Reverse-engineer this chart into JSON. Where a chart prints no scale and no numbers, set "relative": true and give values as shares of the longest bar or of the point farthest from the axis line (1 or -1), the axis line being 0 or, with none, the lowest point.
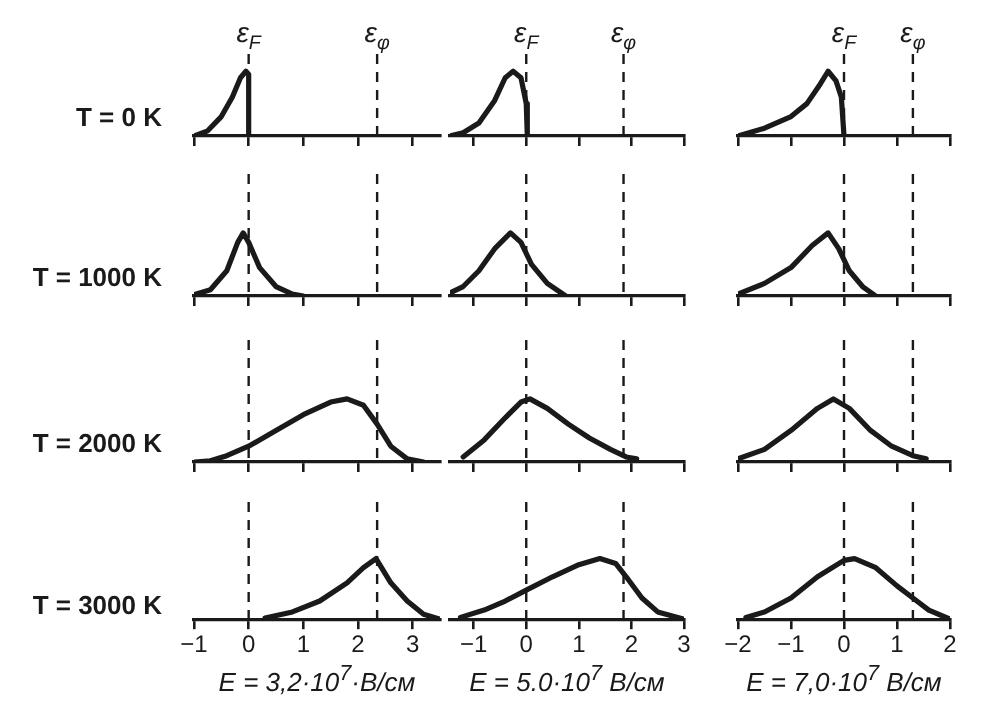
{
  "chart_data": [
    {
      "type": "line",
      "relative": true,
      "ylabel": "T = 0 K",
      "xlim": [
        -1,
        3.5
      ],
      "xticks": [
        -1,
        0,
        1,
        2,
        3
      ],
      "tick_labels": false,
      "ref_lines": [
        {
          "axis": "x",
          "value": 0,
          "label": "ε$_{F}$",
          "line_style": "dashed"
        },
        {
          "axis": "x",
          "value": 2.35,
          "label": "ε$_{φ}$",
          "line_style": "dashed"
        }
      ],
      "series": [
        {
          "color": "#1a1a1a",
          "x": [
            -1,
            -0.75,
            -0.5,
            -0.3,
            -0.15,
            -0.05,
            0,
            0
          ],
          "values": [
            0,
            0.08,
            0.3,
            0.6,
            0.9,
            1,
            0.95,
            0
          ]
        }
      ]
    },
    {
      "type": "line",
      "relative": true,
      "xlim": [
        -1.45,
        3
      ],
      "xticks": [
        -1,
        0,
        1,
        2,
        3
      ],
      "tick_labels": false,
      "ref_lines": [
        {
          "axis": "x",
          "value": 0,
          "label": "ε$_{F}$",
          "line_style": "dashed"
        },
        {
          "axis": "x",
          "value": 1.85,
          "label": "ε$_{φ}$",
          "line_style": "dashed"
        }
      ],
      "series": [
        {
          "color": "#1a1a1a",
          "x": [
            -1.45,
            -1.2,
            -0.9,
            -0.6,
            -0.4,
            -0.25,
            -0.1,
            0,
            0.02
          ],
          "values": [
            0,
            0.05,
            0.2,
            0.55,
            0.9,
            1,
            0.9,
            0.5,
            0
          ]
        }
      ]
    },
    {
      "type": "line",
      "relative": true,
      "xlim": [
        -2,
        2
      ],
      "xticks": [
        -2,
        -1,
        0,
        1,
        2
      ],
      "tick_labels": false,
      "ref_lines": [
        {
          "axis": "x",
          "value": 0,
          "label": "ε$_{F}$",
          "line_style": "dashed"
        },
        {
          "axis": "x",
          "value": 1.3,
          "label": "ε$_{φ}$",
          "line_style": "dashed"
        }
      ],
      "series": [
        {
          "color": "#1a1a1a",
          "x": [
            -2,
            -1.5,
            -1,
            -0.7,
            -0.45,
            -0.3,
            -0.15,
            -0.05,
            0
          ],
          "values": [
            0,
            0.12,
            0.3,
            0.5,
            0.8,
            1,
            0.85,
            0.6,
            0
          ]
        }
      ]
    },
    {
      "type": "line",
      "relative": true,
      "ylabel": "T = 1000 K",
      "xlim": [
        -1,
        3.5
      ],
      "xticks": [
        -1,
        0,
        1,
        2,
        3
      ],
      "tick_labels": false,
      "ref_lines": [
        {
          "axis": "x",
          "value": 0,
          "line_style": "dashed"
        },
        {
          "axis": "x",
          "value": 2.35,
          "line_style": "dashed"
        }
      ],
      "series": [
        {
          "color": "#1a1a1a",
          "x": [
            -1,
            -0.7,
            -0.4,
            -0.2,
            -0.1,
            0,
            0.2,
            0.5,
            0.8,
            1
          ],
          "values": [
            0.02,
            0.1,
            0.4,
            0.85,
            1,
            0.85,
            0.45,
            0.15,
            0.03,
            0
          ]
        }
      ]
    },
    {
      "type": "line",
      "relative": true,
      "xlim": [
        -1.45,
        3
      ],
      "xticks": [
        -1,
        0,
        1,
        2,
        3
      ],
      "tick_labels": false,
      "ref_lines": [
        {
          "axis": "x",
          "value": 0,
          "line_style": "dashed"
        },
        {
          "axis": "x",
          "value": 1.85,
          "line_style": "dashed"
        }
      ],
      "series": [
        {
          "color": "#1a1a1a",
          "x": [
            -1.45,
            -1.2,
            -0.9,
            -0.6,
            -0.3,
            -0.1,
            0.1,
            0.4,
            0.75
          ],
          "values": [
            0.05,
            0.15,
            0.4,
            0.75,
            1,
            0.85,
            0.5,
            0.2,
            0
          ]
        }
      ]
    },
    {
      "type": "line",
      "relative": true,
      "xlim": [
        -2,
        2
      ],
      "xticks": [
        -2,
        -1,
        0,
        1,
        2
      ],
      "tick_labels": false,
      "ref_lines": [
        {
          "axis": "x",
          "value": 0,
          "line_style": "dashed"
        },
        {
          "axis": "x",
          "value": 1.3,
          "line_style": "dashed"
        }
      ],
      "series": [
        {
          "color": "#1a1a1a",
          "x": [
            -2,
            -1.5,
            -1,
            -0.6,
            -0.3,
            -0.1,
            0.1,
            0.35,
            0.6
          ],
          "values": [
            0.03,
            0.2,
            0.45,
            0.8,
            1,
            0.75,
            0.4,
            0.15,
            0
          ]
        }
      ]
    },
    {
      "type": "line",
      "relative": true,
      "ylabel": "T = 2000 K",
      "xlim": [
        -1,
        3.5
      ],
      "xticks": [
        -1,
        0,
        1,
        2,
        3
      ],
      "tick_labels": false,
      "ref_lines": [
        {
          "axis": "x",
          "value": 0,
          "line_style": "dashed"
        },
        {
          "axis": "x",
          "value": 2.35,
          "line_style": "dashed"
        }
      ],
      "series": [
        {
          "color": "#1a1a1a",
          "x": [
            -1,
            -0.7,
            -0.4,
            0,
            0.5,
            1,
            1.5,
            1.8,
            2.1,
            2.35,
            2.6,
            2.9,
            3.2
          ],
          "values": [
            0,
            0.02,
            0.1,
            0.25,
            0.5,
            0.75,
            0.95,
            1,
            0.9,
            0.6,
            0.25,
            0.05,
            0
          ]
        }
      ]
    },
    {
      "type": "line",
      "relative": true,
      "xlim": [
        -1.45,
        3
      ],
      "xticks": [
        -1,
        0,
        1,
        2,
        3
      ],
      "tick_labels": false,
      "ref_lines": [
        {
          "axis": "x",
          "value": 0,
          "line_style": "dashed"
        },
        {
          "axis": "x",
          "value": 1.85,
          "line_style": "dashed"
        }
      ],
      "series": [
        {
          "color": "#1a1a1a",
          "x": [
            -1.2,
            -0.8,
            -0.4,
            -0.1,
            0.07,
            0.4,
            0.8,
            1.2,
            1.6,
            1.9,
            2.1
          ],
          "values": [
            0.08,
            0.35,
            0.7,
            0.95,
            1,
            0.85,
            0.6,
            0.38,
            0.2,
            0.08,
            0.05
          ]
        }
      ]
    },
    {
      "type": "line",
      "relative": true,
      "xlim": [
        -2,
        2
      ],
      "xticks": [
        -2,
        -1,
        0,
        1,
        2
      ],
      "tick_labels": false,
      "ref_lines": [
        {
          "axis": "x",
          "value": 0,
          "line_style": "dashed"
        },
        {
          "axis": "x",
          "value": 1.3,
          "line_style": "dashed"
        }
      ],
      "series": [
        {
          "color": "#1a1a1a",
          "x": [
            -2,
            -1.5,
            -1,
            -0.5,
            -0.2,
            0.1,
            0.5,
            0.9,
            1.3,
            1.55
          ],
          "values": [
            0.05,
            0.2,
            0.5,
            0.85,
            1,
            0.85,
            0.5,
            0.25,
            0.1,
            0.05
          ]
        }
      ]
    },
    {
      "type": "line",
      "relative": true,
      "ylabel": "T = 3000 K",
      "xlabel": "E = 3,2·10$^{7}$·В/см",
      "xlim": [
        -1,
        3.5
      ],
      "xticks": [
        -1,
        0,
        1,
        2,
        3
      ],
      "tick_labels": "x",
      "ref_lines": [
        {
          "axis": "x",
          "value": 0,
          "line_style": "dashed"
        },
        {
          "axis": "x",
          "value": 2.35,
          "line_style": "dashed"
        }
      ],
      "series": [
        {
          "color": "#1a1a1a",
          "x": [
            0.3,
            0.8,
            1.3,
            1.8,
            2.1,
            2.33,
            2.6,
            2.9,
            3.2,
            3.5
          ],
          "values": [
            0.02,
            0.12,
            0.3,
            0.6,
            0.85,
            1,
            0.6,
            0.3,
            0.08,
            0
          ]
        }
      ]
    },
    {
      "type": "line",
      "relative": true,
      "xlabel": "E = 5.0·10$^{7}$ В/см",
      "xlim": [
        -1.45,
        3
      ],
      "xticks": [
        -1,
        0,
        1,
        2,
        3
      ],
      "tick_labels": "x",
      "ref_lines": [
        {
          "axis": "x",
          "value": 0,
          "line_style": "dashed"
        },
        {
          "axis": "x",
          "value": 1.85,
          "line_style": "dashed"
        }
      ],
      "series": [
        {
          "color": "#1a1a1a",
          "x": [
            -1.25,
            -0.8,
            -0.4,
            0,
            0.5,
            1,
            1.4,
            1.7,
            1.9,
            2.2,
            2.5,
            3
          ],
          "values": [
            0.03,
            0.15,
            0.3,
            0.48,
            0.7,
            0.9,
            1,
            0.92,
            0.7,
            0.35,
            0.12,
            0
          ]
        }
      ]
    },
    {
      "type": "line",
      "relative": true,
      "xlabel": "E = 7,0·10$^{7}$ В/см",
      "xlim": [
        -2,
        2
      ],
      "xticks": [
        -2,
        -1,
        0,
        1,
        2
      ],
      "tick_labels": "x",
      "ref_lines": [
        {
          "axis": "x",
          "value": 0,
          "line_style": "dashed"
        },
        {
          "axis": "x",
          "value": 1.3,
          "line_style": "dashed"
        }
      ],
      "series": [
        {
          "color": "#1a1a1a",
          "x": [
            -1.85,
            -1.5,
            -1,
            -0.5,
            0,
            0.2,
            0.6,
            1,
            1.3,
            1.6,
            2
          ],
          "values": [
            0.03,
            0.12,
            0.35,
            0.7,
            0.97,
            1,
            0.85,
            0.55,
            0.35,
            0.15,
            0
          ]
        }
      ]
    }
  ]
}
